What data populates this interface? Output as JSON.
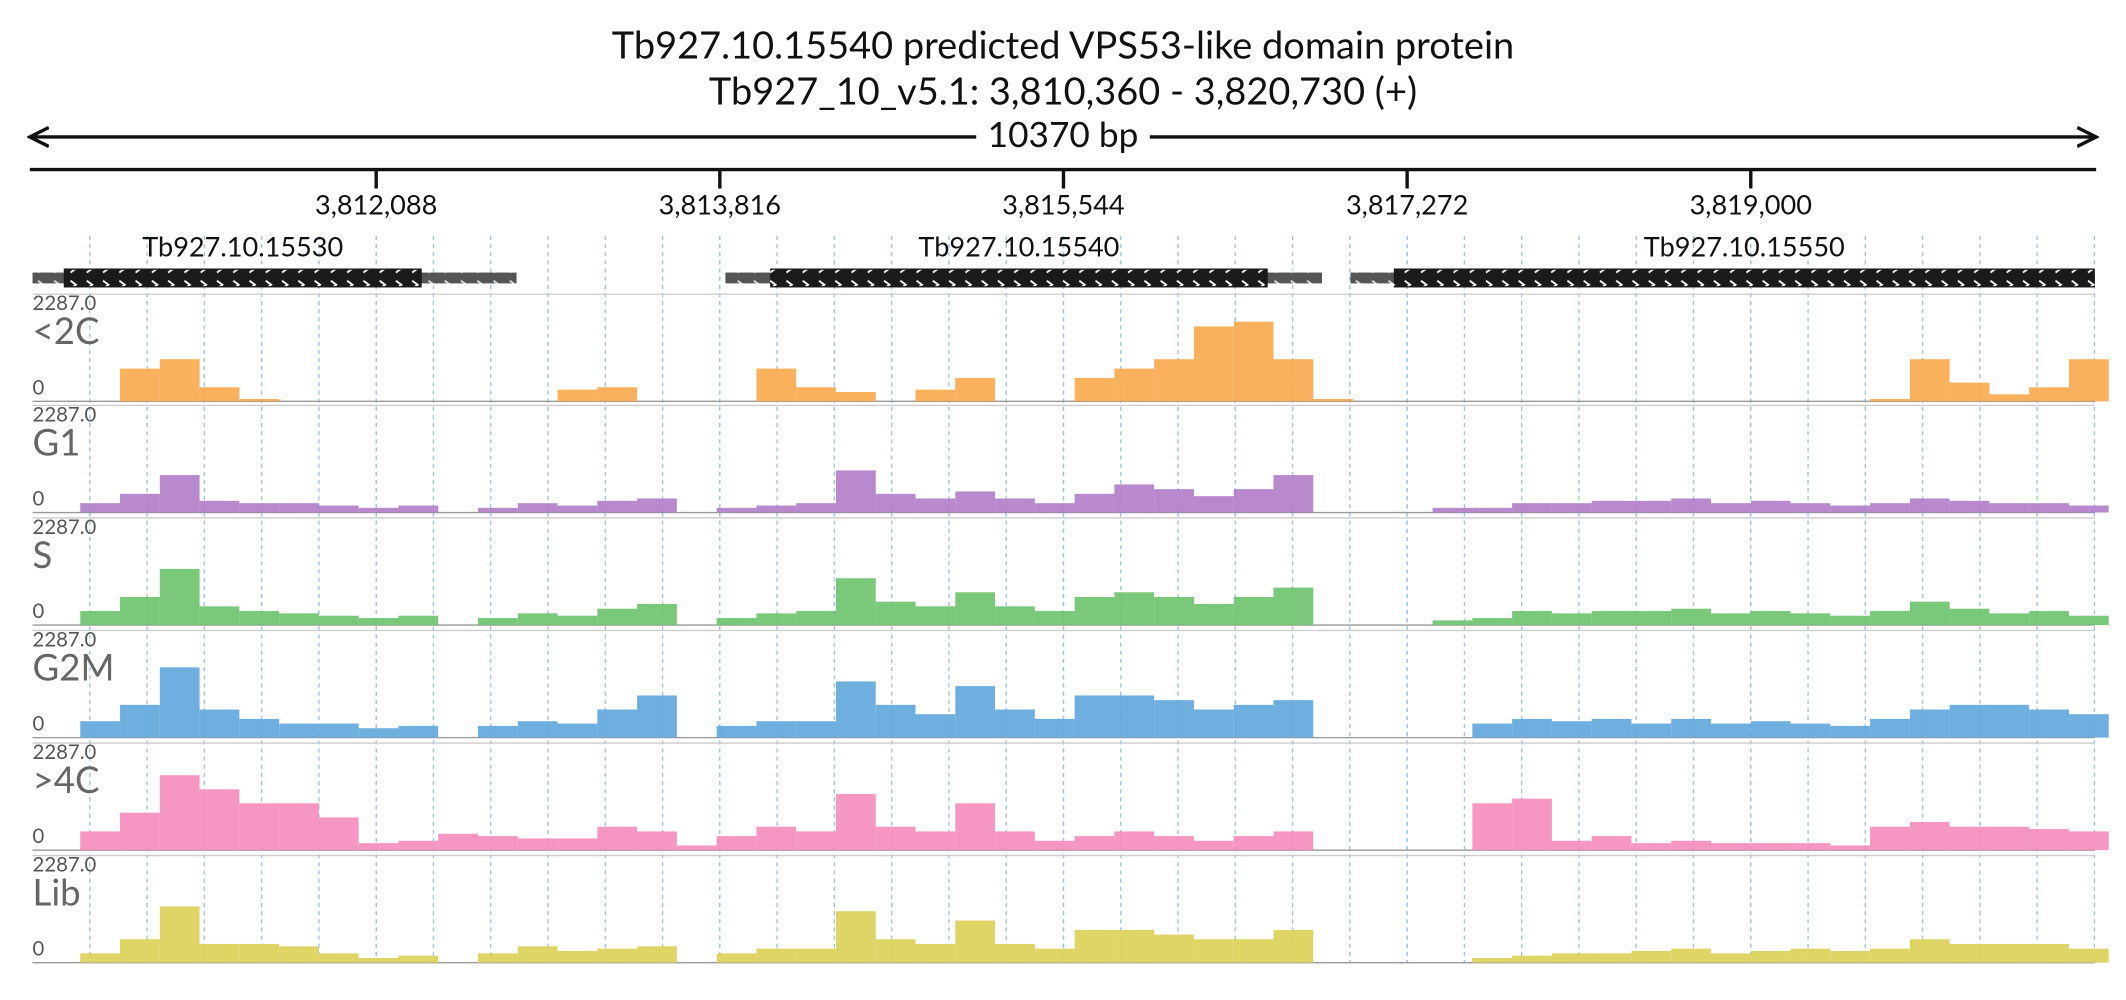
{
  "chart_data": {
    "type": "genome-tracks",
    "title": "Tb927.10.15540  predicted VPS53-like domain protein",
    "subtitle": "Tb927_10_v5.1: 3,810,360 - 3,820,730 (+)",
    "length_label": "10370 bp",
    "xlim": [
      3810360,
      3820730
    ],
    "xticks": [
      {
        "value": 3812088,
        "label": "3,812,088"
      },
      {
        "value": 3813816,
        "label": "3,813,816"
      },
      {
        "value": 3815544,
        "label": "3,815,544"
      },
      {
        "value": 3817272,
        "label": "3,817,272"
      },
      {
        "value": 3819000,
        "label": "3,819,000"
      }
    ],
    "grid": true,
    "genes": [
      {
        "name": "Tb927.10.15530",
        "start": 3810360,
        "cds_start": 3810517,
        "cds_end": 3812317,
        "end": 3812794
      },
      {
        "name": "Tb927.10.15540",
        "start": 3813844,
        "cds_start": 3814069,
        "cds_end": 3816571,
        "end": 3816844
      },
      {
        "name": "Tb927.10.15550",
        "start": 3816987,
        "cds_start": 3817205,
        "cds_end": 3820730,
        "end": 3820730
      }
    ],
    "x": [
      3810400,
      3810600,
      3810800,
      3811000,
      3811200,
      3811400,
      3811600,
      3811800,
      3812000,
      3812200,
      3812400,
      3812600,
      3812800,
      3813000,
      3813200,
      3813400,
      3813600,
      3813800,
      3814000,
      3814200,
      3814400,
      3814600,
      3814800,
      3815000,
      3815200,
      3815400,
      3815600,
      3815800,
      3816000,
      3816200,
      3816400,
      3816600,
      3816800,
      3817000,
      3817200,
      3817400,
      3817600,
      3817800,
      3818000,
      3818200,
      3818400,
      3818600,
      3818800,
      3819000,
      3819200,
      3819400,
      3819600,
      3819800,
      3820000,
      3820200,
      3820400,
      3820600
    ],
    "ylim": [
      0,
      2287
    ],
    "yticks": [
      0,
      {
        "value": 2287,
        "label": "2287.0"
      }
    ],
    "series": [
      {
        "name": "<2C",
        "color": "#f9a94b",
        "values": [
          0,
          0,
          700,
          900,
          300,
          50,
          0,
          0,
          0,
          0,
          0,
          0,
          0,
          250,
          300,
          0,
          0,
          0,
          700,
          300,
          200,
          0,
          250,
          500,
          0,
          0,
          500,
          700,
          900,
          1600,
          1700,
          900,
          50,
          0,
          0,
          0,
          0,
          0,
          0,
          0,
          0,
          0,
          0,
          0,
          0,
          0,
          50,
          900,
          400,
          150,
          300,
          900
        ]
      },
      {
        "name": "G1",
        "color": "#b07cc6",
        "values": [
          0,
          200,
          400,
          800,
          250,
          200,
          200,
          150,
          100,
          150,
          0,
          100,
          200,
          150,
          250,
          300,
          0,
          100,
          150,
          200,
          900,
          400,
          300,
          450,
          300,
          200,
          400,
          600,
          500,
          350,
          500,
          800,
          0,
          0,
          0,
          100,
          100,
          200,
          200,
          250,
          250,
          300,
          200,
          250,
          200,
          150,
          200,
          300,
          250,
          200,
          200,
          150
        ]
      },
      {
        "name": "S",
        "color": "#6cc26a",
        "values": [
          0,
          300,
          600,
          1200,
          400,
          300,
          250,
          200,
          150,
          200,
          0,
          150,
          250,
          200,
          350,
          450,
          0,
          150,
          250,
          300,
          1000,
          500,
          400,
          700,
          400,
          300,
          600,
          700,
          600,
          450,
          600,
          800,
          0,
          0,
          0,
          100,
          150,
          300,
          250,
          300,
          300,
          350,
          250,
          300,
          250,
          200,
          300,
          500,
          350,
          250,
          300,
          200
        ]
      },
      {
        "name": "G2M",
        "color": "#5fa6dc",
        "values": [
          0,
          350,
          700,
          1500,
          600,
          400,
          300,
          300,
          200,
          250,
          0,
          250,
          350,
          300,
          600,
          900,
          0,
          250,
          350,
          350,
          1200,
          700,
          500,
          1100,
          600,
          400,
          900,
          900,
          800,
          600,
          700,
          800,
          0,
          0,
          0,
          0,
          300,
          400,
          350,
          400,
          300,
          400,
          300,
          350,
          300,
          250,
          400,
          600,
          700,
          700,
          600,
          500
        ]
      },
      {
        "name": ">4C",
        "color": "#f58bbd",
        "values": [
          0,
          400,
          800,
          1600,
          1300,
          1000,
          1000,
          700,
          150,
          200,
          350,
          300,
          250,
          250,
          500,
          400,
          100,
          300,
          500,
          400,
          1200,
          500,
          400,
          1000,
          400,
          200,
          300,
          400,
          300,
          200,
          300,
          400,
          0,
          0,
          0,
          0,
          1000,
          1100,
          200,
          300,
          150,
          200,
          150,
          150,
          150,
          100,
          500,
          600,
          500,
          500,
          450,
          400
        ]
      },
      {
        "name": "Lib",
        "color": "#dccf55",
        "values": [
          0,
          200,
          500,
          1200,
          400,
          400,
          350,
          200,
          100,
          150,
          0,
          200,
          350,
          250,
          300,
          350,
          0,
          200,
          300,
          300,
          1100,
          500,
          400,
          900,
          400,
          300,
          700,
          700,
          600,
          500,
          500,
          700,
          0,
          0,
          0,
          0,
          100,
          150,
          200,
          200,
          250,
          300,
          200,
          250,
          300,
          250,
          300,
          500,
          400,
          400,
          400,
          300
        ]
      }
    ]
  }
}
